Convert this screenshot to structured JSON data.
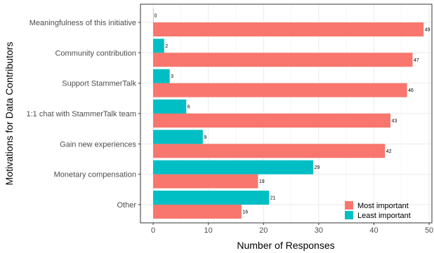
{
  "chart_data": {
    "type": "bar",
    "orientation": "horizontal",
    "xlabel": "Number of Responses",
    "ylabel": "Motivations for Data Contributors",
    "xlim": [
      -2.3,
      50.5
    ],
    "xticks": [
      0,
      10,
      20,
      30,
      40,
      50
    ],
    "grid": true,
    "legend_position": "bottom-right",
    "categories": [
      "Meaningfulness of this initiative",
      "Community contribution",
      "Support StammerTalk",
      "1:1 chat with StammerTalk team",
      "Gain new experiences",
      "Monetary compensation",
      "Other"
    ],
    "series": [
      {
        "name": "Most important",
        "color": "#F8766D",
        "values": [
          49,
          47,
          46,
          43,
          42,
          19,
          16
        ]
      },
      {
        "name": "Least important",
        "color": "#00BFC4",
        "values": [
          0,
          2,
          3,
          6,
          9,
          29,
          21
        ]
      }
    ]
  }
}
